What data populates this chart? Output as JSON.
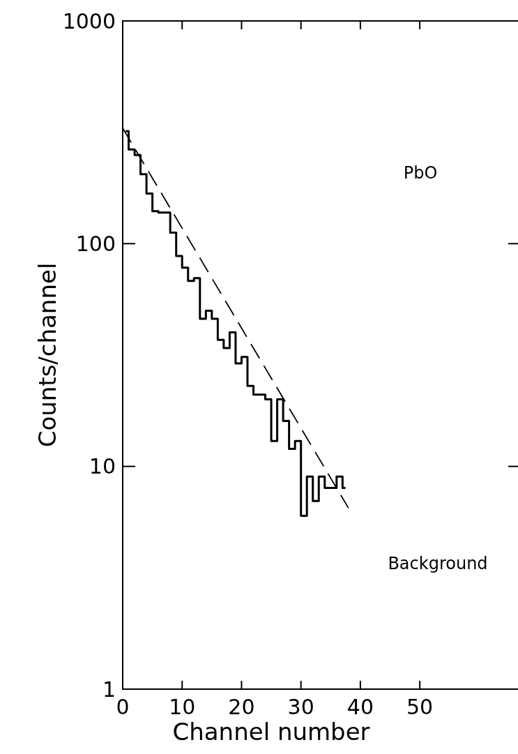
{
  "chart_data": {
    "type": "step",
    "xlabel": "Channel number",
    "ylabel": "Counts/channel",
    "annotations": [
      "PbO",
      "Background"
    ],
    "series": [
      {
        "x": [
          0.5,
          1.5,
          2.5,
          3.5,
          4.5,
          5.5,
          6.5,
          7.5,
          8.5,
          9.5,
          10.5,
          11.5,
          12.5,
          13.5,
          14.5,
          15.5,
          16.5,
          17.5,
          18.5,
          19.5,
          20.5,
          21.5,
          22.5,
          23.5,
          24.5,
          25.5,
          26.5,
          27.5,
          28.5,
          29.5,
          30.5,
          31.5,
          32.5,
          33.5,
          34.5,
          35.5,
          36.5,
          37.5
        ],
        "values": [
          320,
          265,
          250,
          205,
          168,
          140,
          138,
          138,
          112,
          88,
          78,
          68,
          70,
          46,
          50,
          46,
          37,
          34,
          40,
          29,
          31,
          23,
          21,
          21,
          20,
          13,
          20,
          16,
          12,
          13,
          6,
          9,
          7,
          9,
          8,
          8,
          9,
          8
        ],
        "color": "#000000"
      },
      {
        "type": "line",
        "x": [
          0,
          38
        ],
        "values": [
          330,
          6.5
        ],
        "color": "#000000",
        "line_style": "dashed"
      }
    ],
    "log": "y",
    "xlim": [
      0,
      67
    ],
    "ylim": [
      1,
      1000
    ],
    "xticks": [
      0,
      10,
      20,
      30,
      40,
      50
    ],
    "yticks": [
      1,
      10,
      100,
      1000
    ]
  }
}
